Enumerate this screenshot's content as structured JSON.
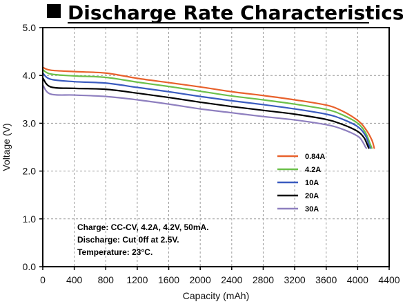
{
  "chart_data": {
    "type": "line",
    "title": "Discharge Rate Characteristics",
    "xlabel": "Capacity (mAh)",
    "ylabel": "Voltage (V)",
    "xlim": [
      0,
      4400
    ],
    "ylim": [
      0,
      5
    ],
    "x_ticks": [
      "0",
      "400",
      "800",
      "1200",
      "1600",
      "2000",
      "2400",
      "2800",
      "3200",
      "3600",
      "4000",
      "4400"
    ],
    "y_ticks": [
      "0.0",
      "1.0",
      "2.0",
      "3.0",
      "4.0",
      "5.0"
    ],
    "grid": true,
    "legend_position": "right",
    "series": [
      {
        "name": "0.84A",
        "color": "#e8612c",
        "points": [
          [
            0,
            4.17
          ],
          [
            100,
            4.11
          ],
          [
            400,
            4.08
          ],
          [
            800,
            4.05
          ],
          [
            1200,
            3.94
          ],
          [
            1600,
            3.85
          ],
          [
            2000,
            3.76
          ],
          [
            2400,
            3.66
          ],
          [
            2800,
            3.58
          ],
          [
            3200,
            3.49
          ],
          [
            3600,
            3.38
          ],
          [
            3800,
            3.26
          ],
          [
            4000,
            3.06
          ],
          [
            4100,
            2.88
          ],
          [
            4180,
            2.65
          ],
          [
            4210,
            2.48
          ]
        ]
      },
      {
        "name": "4.2A",
        "color": "#6cc04a",
        "points": [
          [
            0,
            4.12
          ],
          [
            100,
            4.03
          ],
          [
            400,
            3.99
          ],
          [
            800,
            3.96
          ],
          [
            1200,
            3.86
          ],
          [
            1600,
            3.77
          ],
          [
            2000,
            3.67
          ],
          [
            2400,
            3.57
          ],
          [
            2800,
            3.49
          ],
          [
            3200,
            3.4
          ],
          [
            3600,
            3.29
          ],
          [
            3800,
            3.18
          ],
          [
            4000,
            3.0
          ],
          [
            4100,
            2.8
          ],
          [
            4160,
            2.56
          ],
          [
            4180,
            2.48
          ]
        ]
      },
      {
        "name": "10A",
        "color": "#3a5bbf",
        "points": [
          [
            0,
            4.05
          ],
          [
            100,
            3.92
          ],
          [
            400,
            3.87
          ],
          [
            800,
            3.84
          ],
          [
            1200,
            3.75
          ],
          [
            1600,
            3.66
          ],
          [
            2000,
            3.56
          ],
          [
            2400,
            3.47
          ],
          [
            2800,
            3.39
          ],
          [
            3200,
            3.3
          ],
          [
            3600,
            3.19
          ],
          [
            3800,
            3.09
          ],
          [
            4000,
            2.93
          ],
          [
            4100,
            2.74
          ],
          [
            4140,
            2.56
          ],
          [
            4160,
            2.48
          ]
        ]
      },
      {
        "name": "20A",
        "color": "#000000",
        "points": [
          [
            0,
            3.95
          ],
          [
            100,
            3.76
          ],
          [
            400,
            3.73
          ],
          [
            800,
            3.71
          ],
          [
            1200,
            3.63
          ],
          [
            1600,
            3.54
          ],
          [
            2000,
            3.44
          ],
          [
            2400,
            3.35
          ],
          [
            2800,
            3.27
          ],
          [
            3200,
            3.19
          ],
          [
            3600,
            3.08
          ],
          [
            3800,
            2.98
          ],
          [
            4000,
            2.83
          ],
          [
            4080,
            2.7
          ],
          [
            4120,
            2.56
          ],
          [
            4140,
            2.48
          ]
        ]
      },
      {
        "name": "30A",
        "color": "#8e7fbf",
        "points": [
          [
            0,
            3.8
          ],
          [
            100,
            3.61
          ],
          [
            400,
            3.59
          ],
          [
            800,
            3.56
          ],
          [
            1200,
            3.49
          ],
          [
            1600,
            3.4
          ],
          [
            2000,
            3.3
          ],
          [
            2400,
            3.22
          ],
          [
            2800,
            3.14
          ],
          [
            3200,
            3.07
          ],
          [
            3600,
            2.97
          ],
          [
            3800,
            2.88
          ],
          [
            4000,
            2.73
          ],
          [
            4060,
            2.62
          ],
          [
            4100,
            2.5
          ],
          [
            4110,
            2.48
          ]
        ]
      }
    ],
    "notes": [
      "Charge: CC-CV, 4.2A, 4.2V, 50mA.",
      "Discharge: Cut 0ff at 2.5V.",
      "Temperature: 23°C."
    ]
  }
}
